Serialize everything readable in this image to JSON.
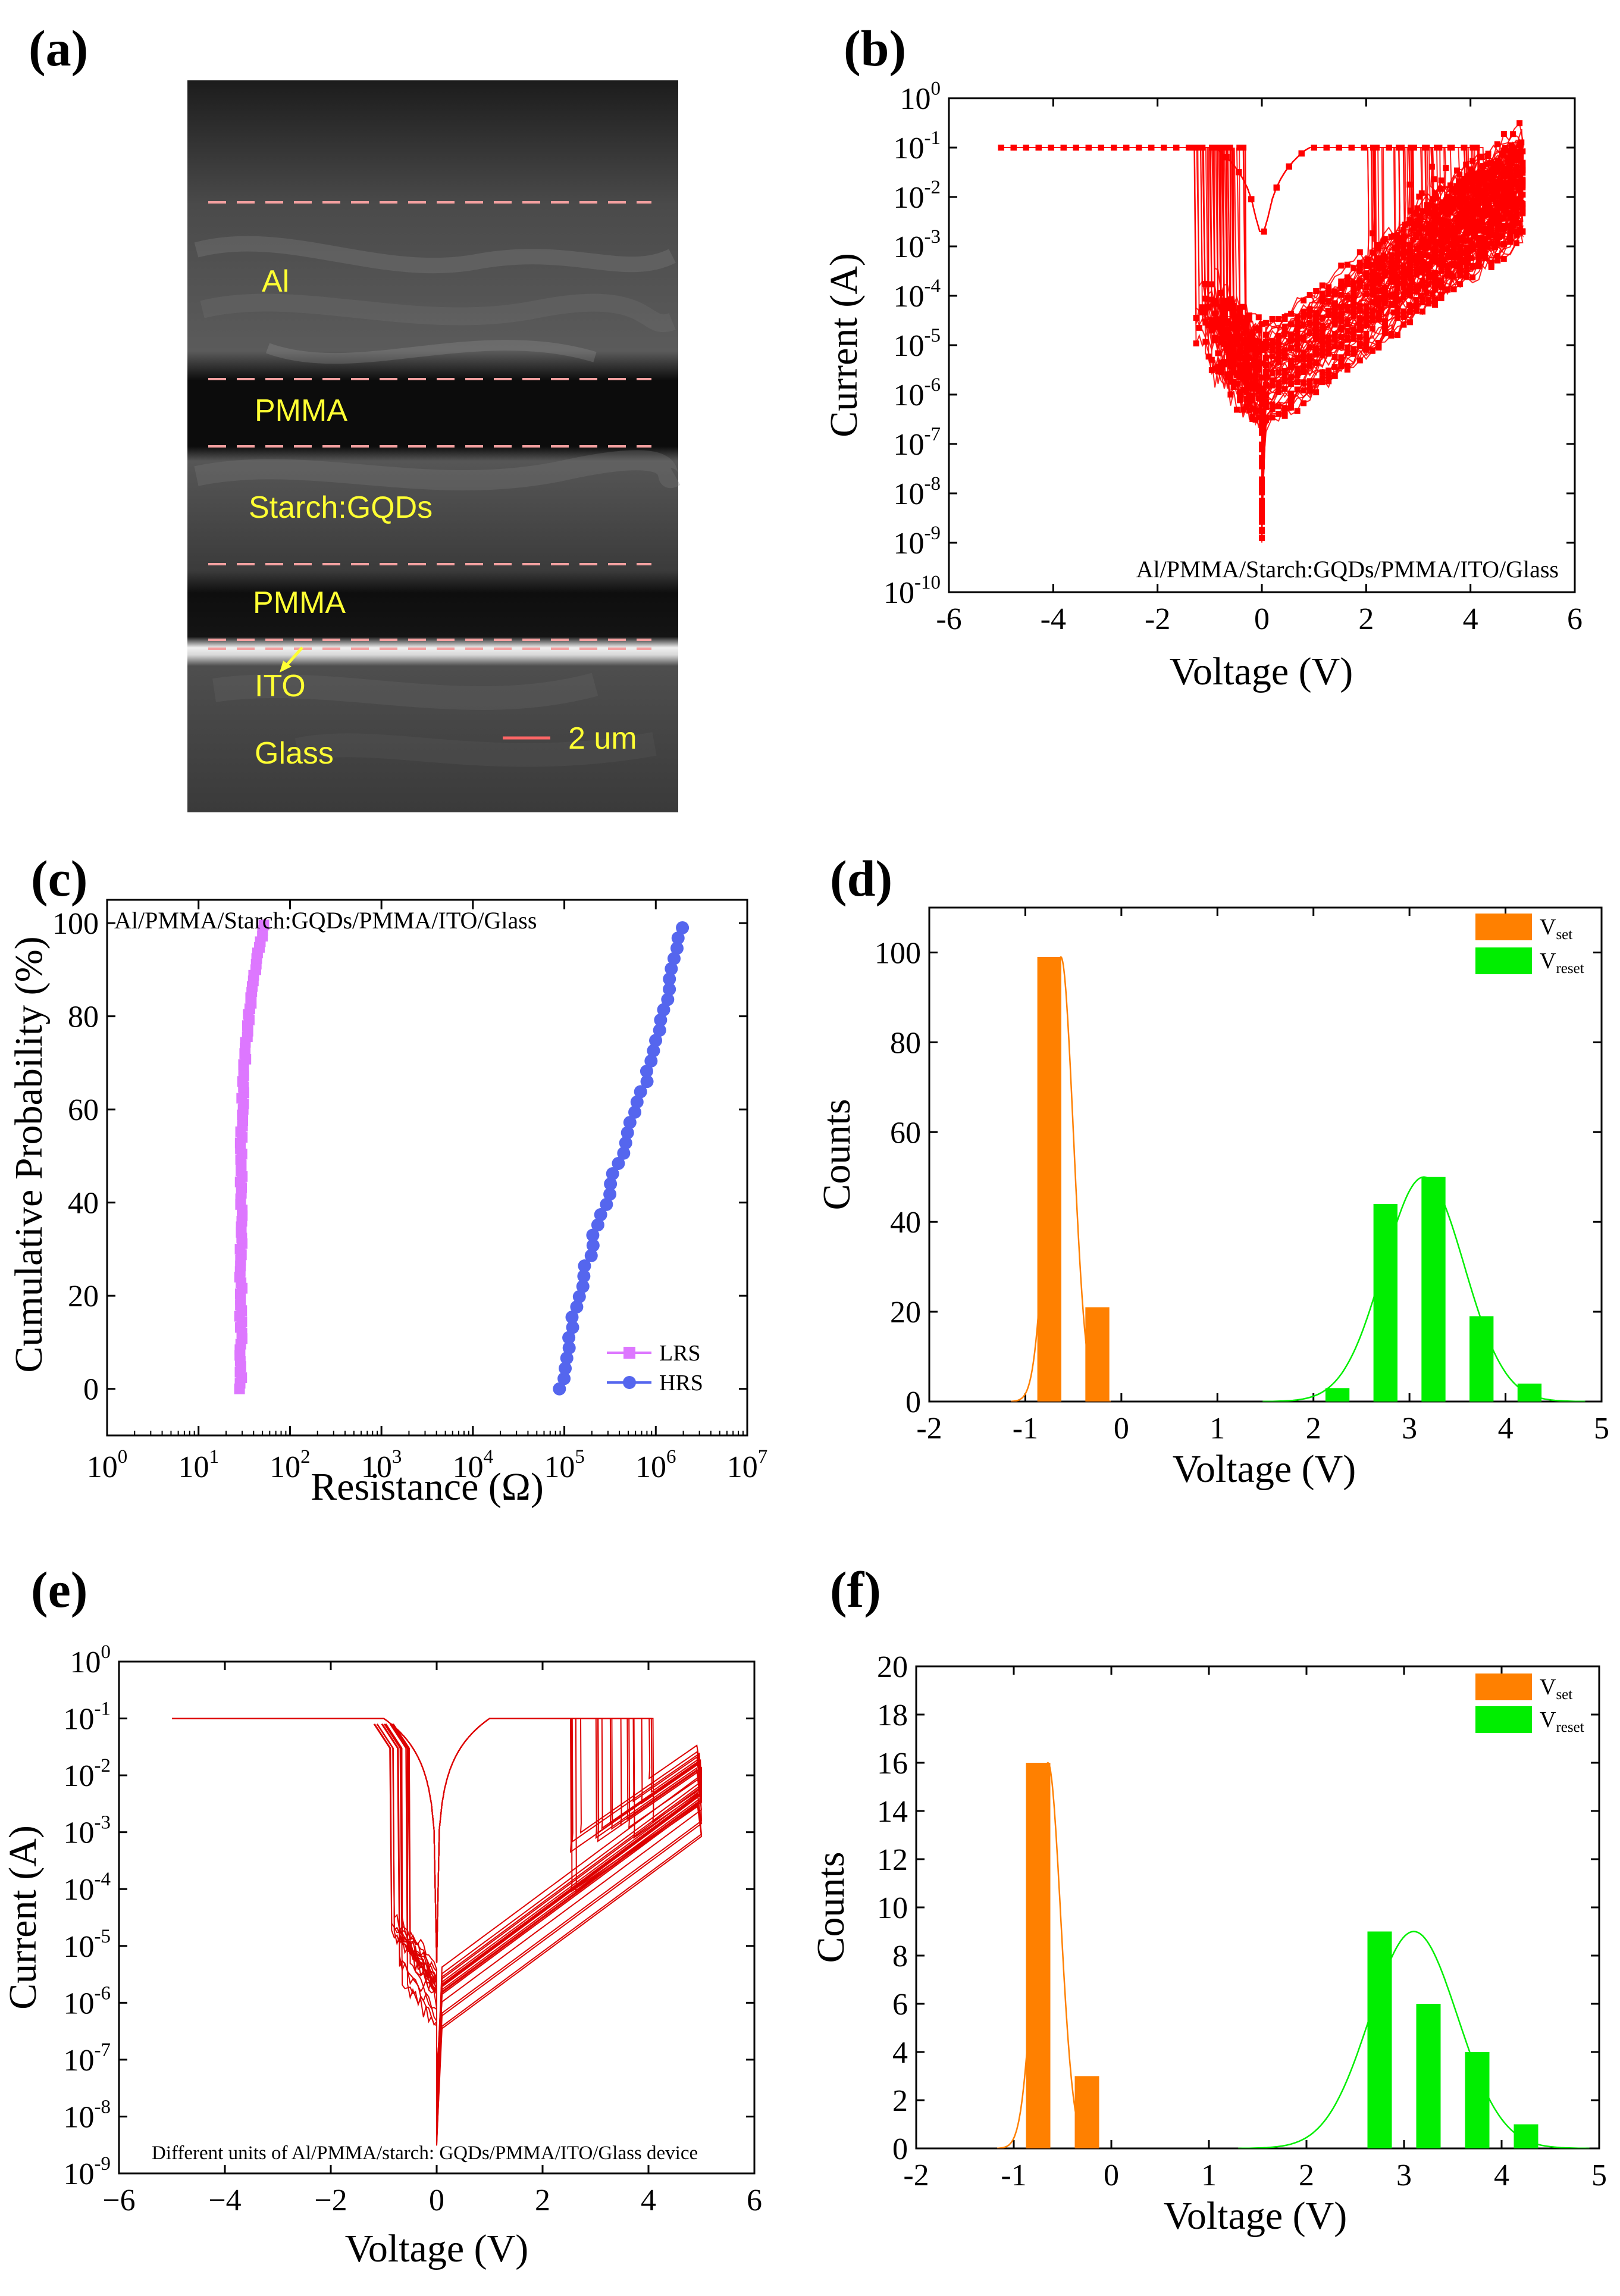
{
  "panel_labels": [
    "(a)",
    "(b)",
    "(c)",
    "(d)",
    "(e)",
    "(f)"
  ],
  "sem": {
    "layers": [
      "Al",
      "PMMA",
      "Starch:GQDs",
      "PMMA",
      "ITO",
      "Glass"
    ],
    "scale_bar": "2 um"
  },
  "chart_data": [
    {
      "panel": "(b)",
      "type": "line",
      "xlabel": "Voltage (V)",
      "ylabel": "Current (A)",
      "yscale": "log",
      "xlim": [
        -6,
        6
      ],
      "ylim_exp": [
        -10,
        0
      ],
      "xticks": [
        "-6",
        "-4",
        "-2",
        "0",
        "2",
        "4",
        "6"
      ],
      "annotation": "Al/PMMA/Starch:GQDs/PMMA/ITO/Glass",
      "color": "#ff0000",
      "n_cycles": 100,
      "compliance_current": 0.1,
      "set_voltage_range": [
        -1.3,
        -0.3
      ],
      "reset_voltage_range": [
        2.0,
        4.3
      ],
      "min_current": 1e-09
    },
    {
      "panel": "(c)",
      "type": "scatter",
      "xlabel": "Resistance (Ω)",
      "ylabel": "Cumulative Probability (%)",
      "xscale": "log",
      "xlim_exp": [
        0,
        7
      ],
      "ylim": [
        -10,
        105
      ],
      "yticks": [
        "0",
        "20",
        "40",
        "60",
        "80",
        "100"
      ],
      "annotation": "Al/PMMA/Starch:GQDs/PMMA/ITO/Glass",
      "series": [
        {
          "name": "LRS",
          "color": "#dd77ff",
          "marker": "square",
          "resistance_range": [
            28,
            52
          ]
        },
        {
          "name": "HRS",
          "color": "#5566ee",
          "marker": "circle",
          "resistance_range": [
            85000,
            2000000
          ]
        }
      ]
    },
    {
      "panel": "(d)",
      "type": "bar",
      "xlabel": "Voltage (V)",
      "ylabel": "Counts",
      "xlim": [
        -2,
        5
      ],
      "ylim": [
        0,
        110
      ],
      "xticks": [
        "-2",
        "-1",
        "0",
        "1",
        "2",
        "3",
        "4",
        "5"
      ],
      "yticks": [
        "0",
        "20",
        "40",
        "60",
        "80",
        "100"
      ],
      "series": [
        {
          "name": "V",
          "sub": "set",
          "color": "#ff8000",
          "x": [
            -0.75,
            -0.25
          ],
          "values": [
            99,
            21
          ],
          "fit_mean": -0.63,
          "fit_sigma": 0.13,
          "fit_peak": 99
        },
        {
          "name": "V",
          "sub": "reset",
          "color": "#00ee00",
          "x": [
            2.25,
            2.75,
            3.25,
            3.75,
            4.25
          ],
          "values": [
            3,
            44,
            50,
            19,
            4
          ],
          "fit_mean": 3.15,
          "fit_sigma": 0.42,
          "fit_peak": 50
        }
      ]
    },
    {
      "panel": "(e)",
      "type": "line",
      "xlabel": "Voltage (V)",
      "ylabel": "Current (A)",
      "yscale": "log",
      "xlim": [
        -6,
        6
      ],
      "ylim_exp": [
        -9,
        0
      ],
      "xticks": [
        "−6",
        "−4",
        "−2",
        "0",
        "2",
        "4",
        "6"
      ],
      "annotation": "Different units of Al/PMMA/starch: GQDs/PMMA/ITO/Glass device",
      "color": "#dd0000",
      "n_units": 20,
      "compliance_current": 0.1,
      "set_voltage_range": [
        -0.9,
        -0.5
      ],
      "reset_voltage_range": [
        2.5,
        4.1
      ],
      "min_current": 3e-09
    },
    {
      "panel": "(f)",
      "type": "bar",
      "xlabel": "Voltage (V)",
      "ylabel": "Counts",
      "xlim": [
        -2,
        5
      ],
      "ylim": [
        0,
        20
      ],
      "xticks": [
        "-2",
        "-1",
        "0",
        "1",
        "2",
        "3",
        "4",
        "5"
      ],
      "yticks": [
        "0",
        "2",
        "4",
        "6",
        "8",
        "10",
        "12",
        "14",
        "16",
        "18",
        "20"
      ],
      "series": [
        {
          "name": "V",
          "sub": "set",
          "color": "#ff8000",
          "x": [
            -0.75,
            -0.25
          ],
          "values": [
            16,
            3
          ],
          "fit_mean": -0.65,
          "fit_sigma": 0.13,
          "fit_peak": 16
        },
        {
          "name": "V",
          "sub": "reset",
          "color": "#00ee00",
          "x": [
            2.75,
            3.25,
            3.75,
            4.25
          ],
          "values": [
            9,
            6,
            4,
            1
          ],
          "fit_mean": 3.1,
          "fit_sigma": 0.45,
          "fit_peak": 9
        }
      ]
    }
  ]
}
